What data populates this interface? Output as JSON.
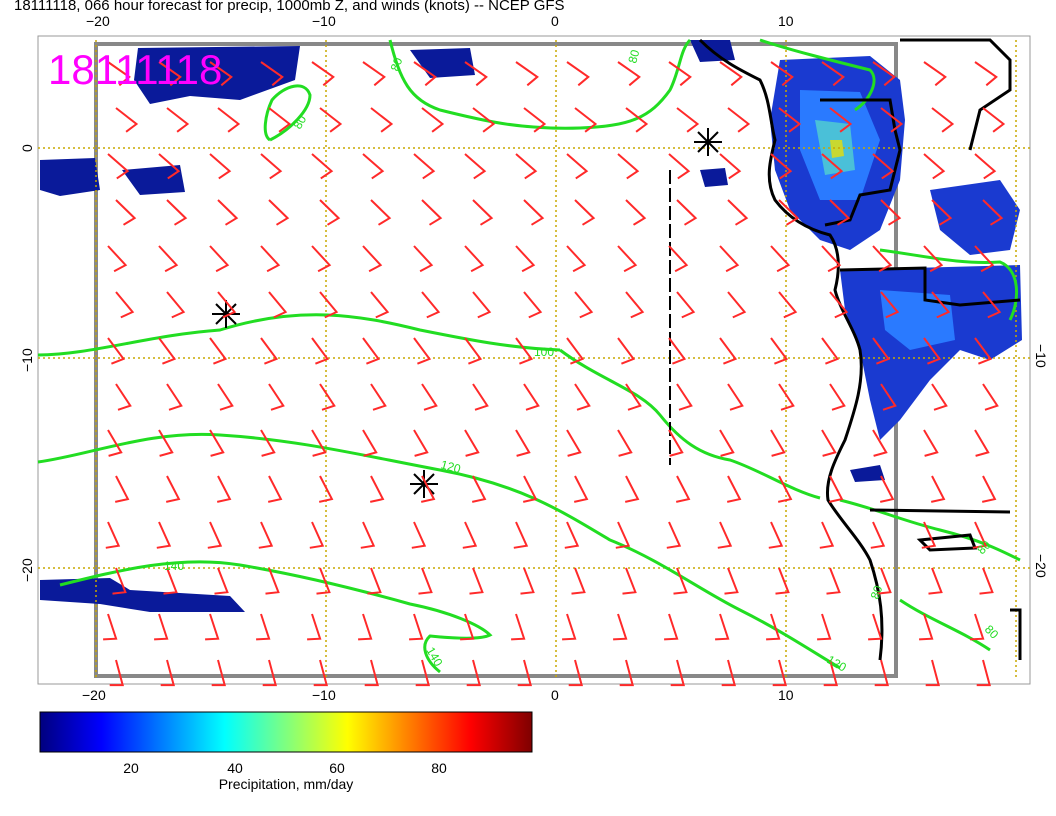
{
  "title": "18111118, 066 hour forecast for precip, 1000mb Z, and winds (knots) -- NCEP GFS",
  "stamp": "18111118",
  "axes": {
    "lon_ticks_top": [
      "−20",
      "−10",
      "0",
      "10"
    ],
    "lon_ticks_bottom": [
      "−20",
      "−10",
      "0",
      "10"
    ],
    "lat_ticks_left": [
      "0",
      "−10",
      "−20"
    ],
    "lat_ticks_right": [
      "−10",
      "−20"
    ]
  },
  "contour_labels": [
    "80",
    "80",
    "80",
    "100",
    "120",
    "140",
    "140",
    "120",
    "80",
    "80",
    "80"
  ],
  "colorbar": {
    "ticks": [
      "20",
      "40",
      "60",
      "80"
    ],
    "label": "Precipitation, mm/day",
    "colors": [
      "#00007f",
      "#0000ff",
      "#007fff",
      "#00ffff",
      "#7fff7f",
      "#ffff00",
      "#ff7f00",
      "#ff0000",
      "#7f0000"
    ]
  },
  "colors": {
    "wind_barbs": "#ff2a2a",
    "contours": "#22dd22",
    "grid": "#c8a800",
    "coast": "#000000",
    "stamp": "#ff00ff"
  }
}
